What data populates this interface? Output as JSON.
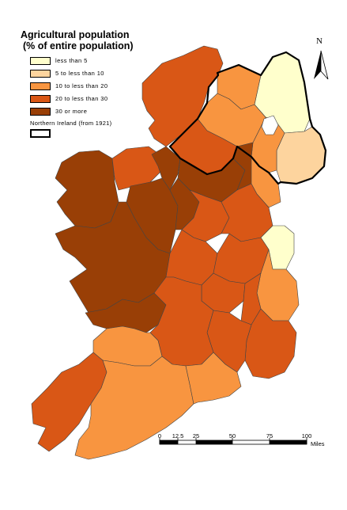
{
  "legend": {
    "title_line1": "Agricultural population",
    "title_line2": "(% of entire population)",
    "classes": [
      {
        "label": "less than 5",
        "color": "#ffffcc"
      },
      {
        "label": "5 to less than 10",
        "color": "#fdd49e"
      },
      {
        "label": "10 to less than 20",
        "color": "#f89540"
      },
      {
        "label": "20 to less than 30",
        "color": "#d95716"
      },
      {
        "label": "30 or more",
        "color": "#993f06"
      }
    ],
    "ni_label": "Northern Ireland (from 1921)"
  },
  "north_arrow": {
    "label": "N"
  },
  "scale_bar": {
    "ticks": [
      "0",
      "12.5",
      "25",
      "50",
      "75",
      "100"
    ],
    "tick_values": [
      0,
      12.5,
      25,
      50,
      75,
      100
    ],
    "unit": "Miles"
  }
}
